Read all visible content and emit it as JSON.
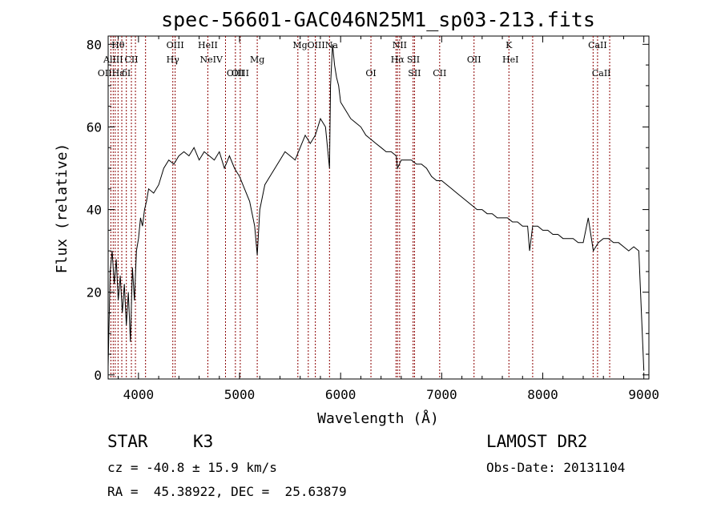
{
  "chart_data": {
    "type": "line",
    "title": "spec-56601-GAC046N25M1_sp03-213.fits",
    "xlabel": "Wavelength (Å)",
    "ylabel": "Flux (relative)",
    "xlim": [
      3700,
      9050
    ],
    "ylim": [
      -1,
      82
    ],
    "xticks": [
      4000,
      5000,
      6000,
      7000,
      8000,
      9000
    ],
    "yticks": [
      0,
      20,
      40,
      60,
      80
    ],
    "grid": false,
    "line_color": "#000000",
    "marker_color": "#8b0000",
    "series": [
      {
        "x": [
          3700,
          3720,
          3740,
          3760,
          3780,
          3800,
          3820,
          3840,
          3860,
          3880,
          3900,
          3920,
          3940,
          3960,
          3980,
          4000,
          4020,
          4040,
          4060,
          4080,
          4100,
          4150,
          4200,
          4250,
          4300,
          4350,
          4400,
          4450,
          4500,
          4550,
          4600,
          4650,
          4700,
          4750,
          4800,
          4850,
          4900,
          4950,
          5000,
          5050,
          5100,
          5150,
          5175,
          5200,
          5250,
          5300,
          5350,
          5400,
          5450,
          5500,
          5550,
          5600,
          5650,
          5700,
          5750,
          5800,
          5850,
          5890,
          5900,
          5920,
          5940,
          5960,
          5980,
          6000,
          6050,
          6100,
          6150,
          6200,
          6250,
          6300,
          6350,
          6400,
          6450,
          6500,
          6550,
          6563,
          6600,
          6650,
          6700,
          6750,
          6800,
          6850,
          6900,
          6950,
          7000,
          7050,
          7100,
          7150,
          7200,
          7250,
          7300,
          7350,
          7400,
          7450,
          7500,
          7550,
          7600,
          7650,
          7700,
          7750,
          7800,
          7850,
          7870,
          7900,
          7950,
          8000,
          8050,
          8100,
          8150,
          8200,
          8250,
          8300,
          8350,
          8400,
          8450,
          8500,
          8550,
          8600,
          8650,
          8700,
          8750,
          8800,
          8850,
          8900,
          8950,
          9000
        ],
        "y": [
          2,
          25,
          30,
          22,
          28,
          18,
          24,
          15,
          22,
          12,
          20,
          8,
          26,
          18,
          30,
          33,
          38,
          36,
          40,
          42,
          45,
          44,
          46,
          50,
          52,
          51,
          53,
          54,
          53,
          55,
          52,
          54,
          53,
          52,
          54,
          50,
          53,
          50,
          48,
          45,
          42,
          36,
          29,
          40,
          46,
          48,
          50,
          52,
          54,
          53,
          52,
          55,
          58,
          56,
          58,
          62,
          60,
          50,
          70,
          80,
          75,
          72,
          70,
          66,
          64,
          62,
          61,
          60,
          58,
          57,
          56,
          55,
          54,
          54,
          53,
          50,
          52,
          52,
          52,
          51,
          51,
          50,
          48,
          47,
          47,
          46,
          45,
          44,
          43,
          42,
          41,
          40,
          40,
          39,
          39,
          38,
          38,
          38,
          37,
          37,
          36,
          36,
          30,
          36,
          36,
          35,
          35,
          34,
          34,
          33,
          33,
          33,
          32,
          32,
          38,
          30,
          32,
          33,
          33,
          32,
          32,
          31,
          30,
          31,
          30,
          1
        ]
      }
    ],
    "emission_lines": [
      {
        "label": "Hθ",
        "wavelength": 3798,
        "row": 0
      },
      {
        "label": "AlIII",
        "wavelength": 3750,
        "row": 1
      },
      {
        "label": "CII",
        "wavelength": 3930,
        "row": 1
      },
      {
        "label": "OIIHε",
        "wavelength": 3727,
        "row": 2
      },
      {
        "label": "δI",
        "wavelength": 3880,
        "row": 2
      },
      {
        "label": "OIII",
        "wavelength": 4363,
        "row": 0
      },
      {
        "label": "Hγ",
        "wavelength": 4340,
        "row": 1
      },
      {
        "label": "HeII",
        "wavelength": 4686,
        "row": 0
      },
      {
        "label": "NeIV",
        "wavelength": 4720,
        "row": 1
      },
      {
        "label": "OIII",
        "wavelength": 4959,
        "row": 2
      },
      {
        "label": "OIII",
        "wavelength": 5007,
        "row": 2
      },
      {
        "label": "Mg",
        "wavelength": 5175,
        "row": 1
      },
      {
        "label": "MgOIIINa",
        "wavelength": 5750,
        "row": 0
      },
      {
        "label": "NII",
        "wavelength": 6584,
        "row": 0
      },
      {
        "label": "Hα",
        "wavelength": 6563,
        "row": 1
      },
      {
        "label": "SII",
        "wavelength": 6720,
        "row": 1
      },
      {
        "label": "OI",
        "wavelength": 6300,
        "row": 2
      },
      {
        "label": "SII",
        "wavelength": 6731,
        "row": 2
      },
      {
        "label": "CII",
        "wavelength": 6980,
        "row": 2
      },
      {
        "label": "OII",
        "wavelength": 7320,
        "row": 1
      },
      {
        "label": "K",
        "wavelength": 7665,
        "row": 0
      },
      {
        "label": "HeI",
        "wavelength": 7681,
        "row": 1
      },
      {
        "label": "CaII",
        "wavelength": 8542,
        "row": 0
      },
      {
        "label": "CaII",
        "wavelength": 8580,
        "row": 2
      }
    ],
    "marker_wavelengths": [
      3727,
      3750,
      3770,
      3798,
      3835,
      3880,
      3930,
      3970,
      4070,
      4340,
      4363,
      4686,
      4861,
      4959,
      5007,
      5175,
      5577,
      5680,
      5750,
      5890,
      6300,
      6548,
      6563,
      6584,
      6717,
      6731,
      6980,
      7320,
      7665,
      7900,
      8498,
      8542,
      8662
    ]
  },
  "info": {
    "object_class": "STAR",
    "subclass": "K3",
    "survey": "LAMOST DR2",
    "redshift": "cz = -40.8 ± 15.9 km/s",
    "obs_date": "Obs-Date: 20131104",
    "coords": "RA =  45.38922, DEC =  25.63879"
  }
}
